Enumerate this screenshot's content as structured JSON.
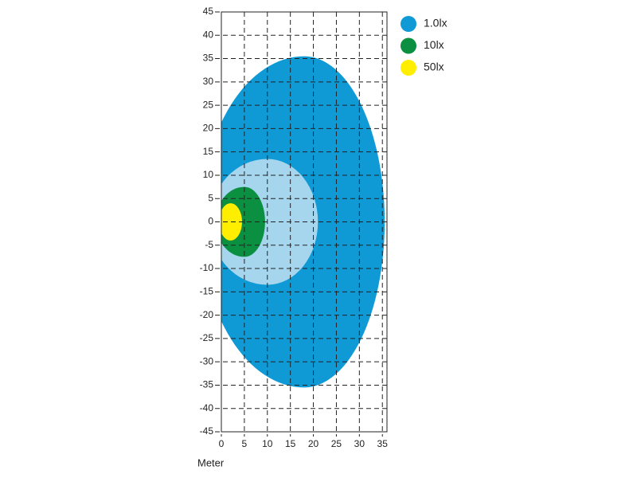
{
  "chart_data": {
    "type": "isolux",
    "x_label": "Meter",
    "xlim": [
      0,
      36
    ],
    "ylim": [
      -45,
      45
    ],
    "xticks": [
      0,
      5,
      10,
      15,
      20,
      25,
      30,
      35
    ],
    "yticks": [
      -45,
      -40,
      -35,
      -30,
      -25,
      -20,
      -15,
      -10,
      -5,
      0,
      5,
      10,
      15,
      20,
      25,
      30,
      35,
      40,
      45
    ],
    "grid": true,
    "series": [
      {
        "name": "1.0lx",
        "color": "#0f9ad6",
        "reach": 35.5,
        "half_width": 35.5,
        "peak_x": 18
      },
      {
        "name": null,
        "color": "#a6d5ee",
        "reach": 21,
        "half_width": 13.5,
        "peak_x": 10
      },
      {
        "name": "10lx",
        "color": "#0a9040",
        "reach": 9.5,
        "half_width": 7.5,
        "peak_x": 5
      },
      {
        "name": "50lx",
        "color": "#ffee00",
        "reach": 4.5,
        "half_width": 4,
        "peak_x": 2
      }
    ]
  }
}
